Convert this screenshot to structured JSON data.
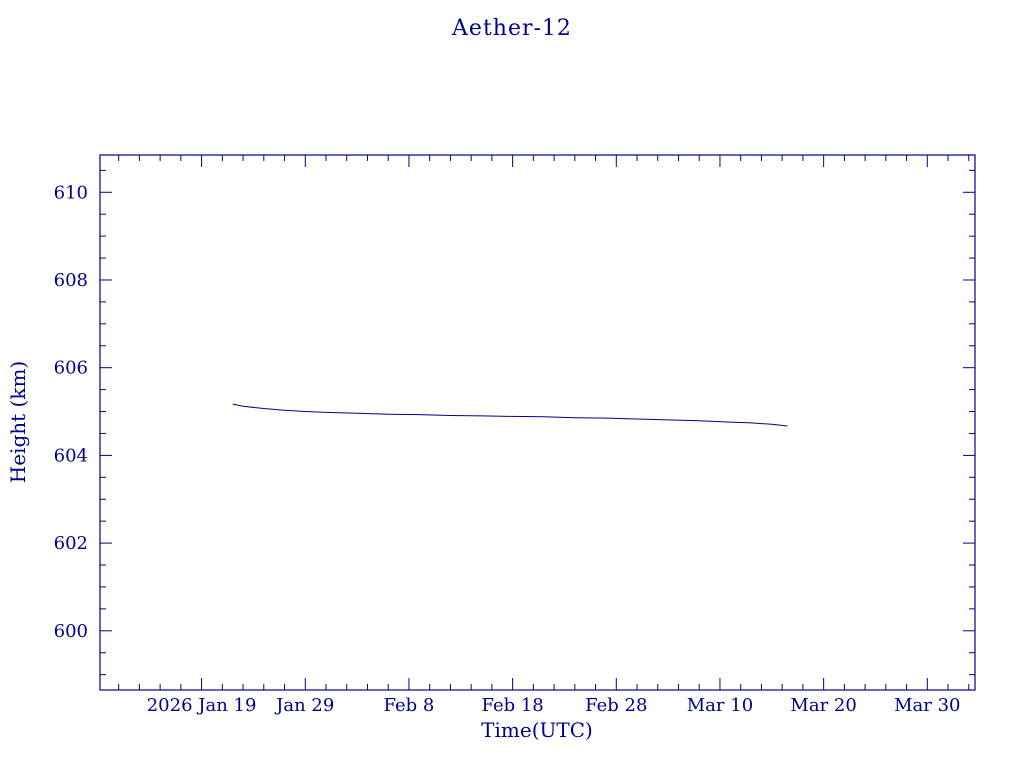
{
  "chart": {
    "title": "Aether-12",
    "xlabel": "Time(UTC)",
    "ylabel": "Height (km)"
  },
  "chart_data": {
    "type": "line",
    "title": "Aether-12",
    "xlabel": "Time(UTC)",
    "ylabel": "Height (km)",
    "color": "#00008b",
    "background": "#ffffff",
    "grid": false,
    "legend": "none",
    "x_unit": "day-of-year-2026",
    "xlim": [
      9.2,
      93.6
    ],
    "ylim": [
      598.65,
      610.85
    ],
    "x_major_ticks": [
      19,
      29,
      39,
      49,
      59,
      69,
      79,
      89
    ],
    "x_tick_labels": [
      "2026 Jan 19",
      "Jan 29",
      "Feb 8",
      "Feb 18",
      "Feb 28",
      "Mar 10",
      "Mar 20",
      "Mar 30"
    ],
    "x_minor_step": 2,
    "y_major_ticks": [
      600,
      602,
      604,
      606,
      608,
      610
    ],
    "y_tick_labels": [
      "600",
      "602",
      "604",
      "606",
      "608",
      "610"
    ],
    "y_minor_step": 0.5,
    "series": [
      {
        "name": "height",
        "x": [
          22,
          23,
          25,
          27,
          29,
          31,
          34,
          37,
          40,
          43,
          46,
          49,
          52,
          55,
          58,
          61,
          64,
          67,
          70,
          72,
          74,
          75.5
        ],
        "y": [
          605.17,
          605.12,
          605.07,
          605.03,
          605.0,
          604.98,
          604.96,
          604.94,
          604.93,
          604.91,
          604.9,
          604.89,
          604.88,
          604.86,
          604.85,
          604.83,
          604.81,
          604.79,
          604.76,
          604.74,
          604.71,
          604.67
        ]
      }
    ]
  }
}
